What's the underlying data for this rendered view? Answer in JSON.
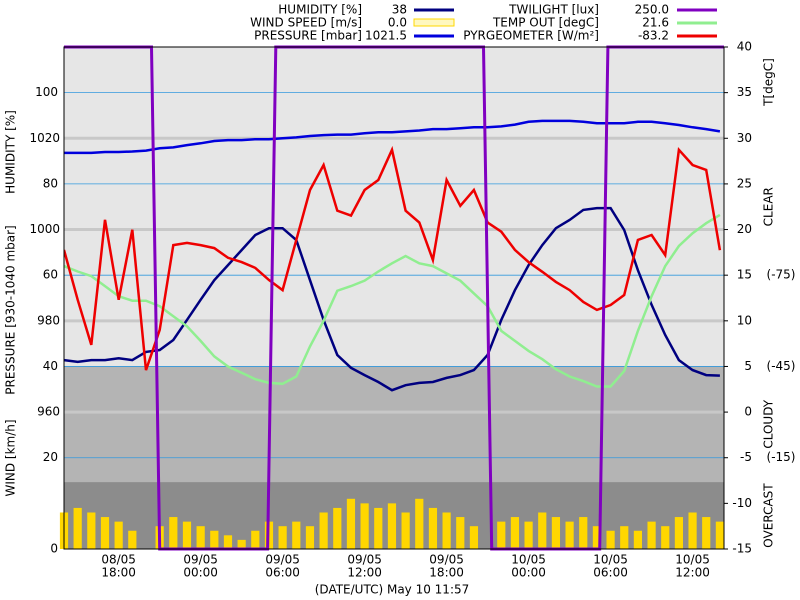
{
  "chart_data": {
    "type": "line",
    "x_label": "(DATE/UTC) May 10 11:57",
    "xlim": [
      14,
      62.3
    ],
    "xticks": [
      {
        "value": 18,
        "label": [
          "08/05",
          "18:00"
        ]
      },
      {
        "value": 24,
        "label": [
          "09/05",
          "00:00"
        ]
      },
      {
        "value": 30,
        "label": [
          "09/05",
          "06:00"
        ]
      },
      {
        "value": 36,
        "label": [
          "09/05",
          "12:00"
        ]
      },
      {
        "value": 42,
        "label": [
          "09/05",
          "18:00"
        ]
      },
      {
        "value": 48,
        "label": [
          "10/05",
          "00:00"
        ]
      },
      {
        "value": 54,
        "label": [
          "10/05",
          "06:00"
        ]
      },
      {
        "value": 60,
        "label": [
          "10/05",
          "12:00"
        ]
      }
    ],
    "x": [
      14,
      15,
      16,
      17,
      18,
      19,
      20,
      21,
      22,
      23,
      24,
      25,
      26,
      27,
      28,
      29,
      30,
      31,
      32,
      33,
      34,
      35,
      36,
      37,
      38,
      39,
      40,
      41,
      42,
      43,
      44,
      45,
      46,
      47,
      48,
      49,
      50,
      51,
      52,
      53,
      54,
      55,
      56,
      57,
      58,
      59,
      60,
      61,
      62
    ],
    "axes": {
      "humidity": {
        "label": "HUMIDITY [%]",
        "lim": [
          0,
          110
        ],
        "ticks": [
          0,
          20,
          40,
          60,
          80,
          100
        ],
        "side": "left"
      },
      "pressure": {
        "label": "PRESSURE [930-1040 mbar]",
        "lim": [
          930,
          1040
        ],
        "ticks": [
          960,
          980,
          1000,
          1020
        ],
        "side": "left"
      },
      "wind": {
        "label": "WIND [km/h]",
        "lim": [
          0,
          110
        ],
        "side": "left"
      },
      "temp": {
        "label": "T[degC]",
        "lim": [
          -15,
          40
        ],
        "ticks": [
          -15,
          -10,
          -5,
          0,
          5,
          10,
          15,
          20,
          25,
          30,
          35,
          40
        ],
        "side": "right"
      },
      "pyrgeometer": {
        "lim": [
          15,
          -150
        ],
        "ticks": [
          {
            "value": -75,
            "label": "(-75)"
          },
          {
            "value": -45,
            "label": "(-45)"
          },
          {
            "value": -15,
            "label": "(-15)"
          }
        ],
        "side": "right"
      },
      "twilight": {
        "lim": [
          0,
          250
        ]
      }
    },
    "bands": [
      {
        "name": "CLEAR",
        "from": -150,
        "to": -45,
        "color": "#e6e6e6"
      },
      {
        "name": "CLOUDY",
        "from": -45,
        "to": -7,
        "color": "#b4b4b4"
      },
      {
        "name": "OVERCAST",
        "from": -7,
        "to": 15,
        "color": "#8c8c8c"
      }
    ],
    "series": [
      {
        "name": "HUMIDITY [%]",
        "current": 38,
        "color": "#000080",
        "axis": "humidity",
        "kind": "line",
        "values": [
          41.4,
          41.0,
          41.4,
          41.4,
          41.8,
          41.4,
          43.2,
          43.6,
          45.8,
          50.2,
          54.6,
          58.9,
          62.2,
          65.5,
          68.8,
          70.3,
          70.3,
          67.7,
          58.9,
          50.2,
          42.5,
          39.7,
          38.1,
          36.6,
          34.8,
          35.9,
          36.4,
          36.6,
          37.5,
          38.1,
          39.2,
          42.5,
          50.2,
          56.7,
          62.2,
          66.6,
          70.3,
          72.1,
          74.3,
          74.7,
          74.7,
          69.9,
          61.1,
          53.5,
          46.9,
          41.4,
          39.2,
          38.1,
          38
        ]
      },
      {
        "name": "WIND SPEED [m/s]",
        "current": {
          "value": 0,
          "label": "0.0"
        },
        "color": "#ffd700",
        "axis": "wind",
        "kind": "bar",
        "values": [
          8,
          9,
          8,
          7,
          6,
          4,
          0,
          5,
          7,
          6,
          5,
          4,
          3,
          2,
          4,
          6,
          5,
          6,
          5,
          8,
          9,
          11,
          10,
          9,
          10,
          8,
          11,
          9,
          8,
          7,
          5,
          0,
          6,
          7,
          6,
          8,
          7,
          6,
          7,
          5,
          4,
          5,
          4,
          6,
          5,
          7,
          8,
          7,
          6
        ]
      },
      {
        "name": "PRESSURE [mbar]",
        "current": 1021.5,
        "color": "#0000dd",
        "axis": "pressure",
        "kind": "line",
        "values": [
          1016.8,
          1016.8,
          1016.8,
          1017.0,
          1017.0,
          1017.1,
          1017.3,
          1017.8,
          1018.0,
          1018.5,
          1018.9,
          1019.4,
          1019.6,
          1019.6,
          1019.8,
          1019.8,
          1020.0,
          1020.2,
          1020.5,
          1020.7,
          1020.8,
          1020.8,
          1021.1,
          1021.3,
          1021.3,
          1021.5,
          1021.7,
          1022.0,
          1022.0,
          1022.2,
          1022.4,
          1022.4,
          1022.6,
          1023.0,
          1023.6,
          1023.8,
          1023.8,
          1023.8,
          1023.6,
          1023.3,
          1023.3,
          1023.3,
          1023.6,
          1023.6,
          1023.3,
          1022.9,
          1022.4,
          1022.0,
          1021.5
        ]
      },
      {
        "name": "TWILIGHT [lux]",
        "current": {
          "value": 250,
          "label": "250.0"
        },
        "color": "#8000c0",
        "axis": "twilight",
        "kind": "line",
        "x": [
          14,
          20.4,
          21.0,
          28.9,
          29.5,
          44.7,
          45.3,
          53.2,
          53.8,
          62.3
        ],
        "values": [
          250,
          250,
          0,
          0,
          250,
          250,
          0,
          0,
          250,
          250
        ]
      },
      {
        "name": "TEMP OUT [degC]",
        "current": 21.6,
        "color": "#90ee90",
        "axis": "temp",
        "kind": "line",
        "values": [
          16.0,
          15.4,
          14.9,
          13.8,
          12.7,
          12.2,
          12.2,
          11.6,
          10.5,
          9.4,
          7.8,
          6.1,
          5.0,
          4.3,
          3.6,
          3.2,
          3.1,
          3.9,
          7.2,
          10.0,
          13.3,
          13.8,
          14.4,
          15.4,
          16.3,
          17.1,
          16.3,
          16.0,
          15.2,
          14.4,
          13.0,
          11.6,
          8.9,
          7.8,
          6.7,
          5.8,
          4.7,
          3.9,
          3.4,
          2.8,
          2.8,
          4.5,
          8.9,
          12.7,
          16.0,
          18.2,
          19.6,
          20.7,
          21.6
        ]
      },
      {
        "name": "PYRGEOMETER [W/m²]",
        "current": -83.2,
        "color": "#ee0000",
        "axis": "pyrgeometer",
        "kind": "line",
        "values": [
          -83.3,
          -66.9,
          -52.1,
          -93.2,
          -66.9,
          -89.9,
          -43.8,
          -57.0,
          -84.9,
          -85.6,
          -84.9,
          -83.9,
          -80.7,
          -79.3,
          -77.4,
          -73.4,
          -70.1,
          -86.6,
          -103.0,
          -111.2,
          -96.2,
          -94.6,
          -103.0,
          -106.3,
          -116.2,
          -96.2,
          -92.3,
          -80.0,
          -106.3,
          -97.8,
          -103.0,
          -92.3,
          -89.3,
          -83.3,
          -79.3,
          -76.1,
          -72.8,
          -70.1,
          -66.2,
          -63.6,
          -65.2,
          -68.5,
          -86.6,
          -88.2,
          -81.6,
          -116.2,
          -111.2,
          -109.6,
          -83.2
        ]
      }
    ]
  }
}
